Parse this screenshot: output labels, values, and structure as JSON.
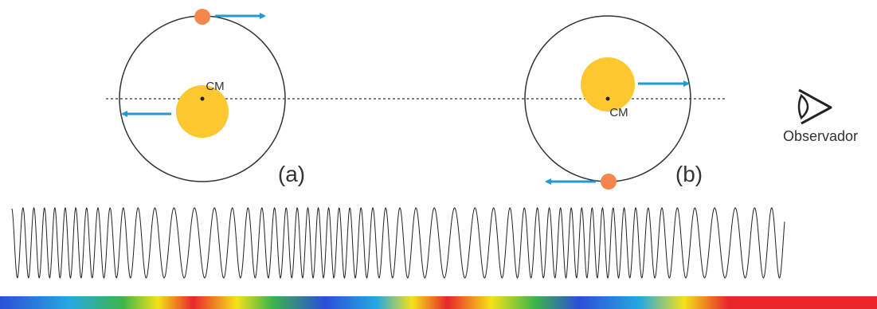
{
  "panel_a": {
    "cm_label": "CM",
    "label": "(a)"
  },
  "panel_b": {
    "cm_label": "CM",
    "label": "(b)"
  },
  "observer": {
    "label": "Observador"
  }
}
